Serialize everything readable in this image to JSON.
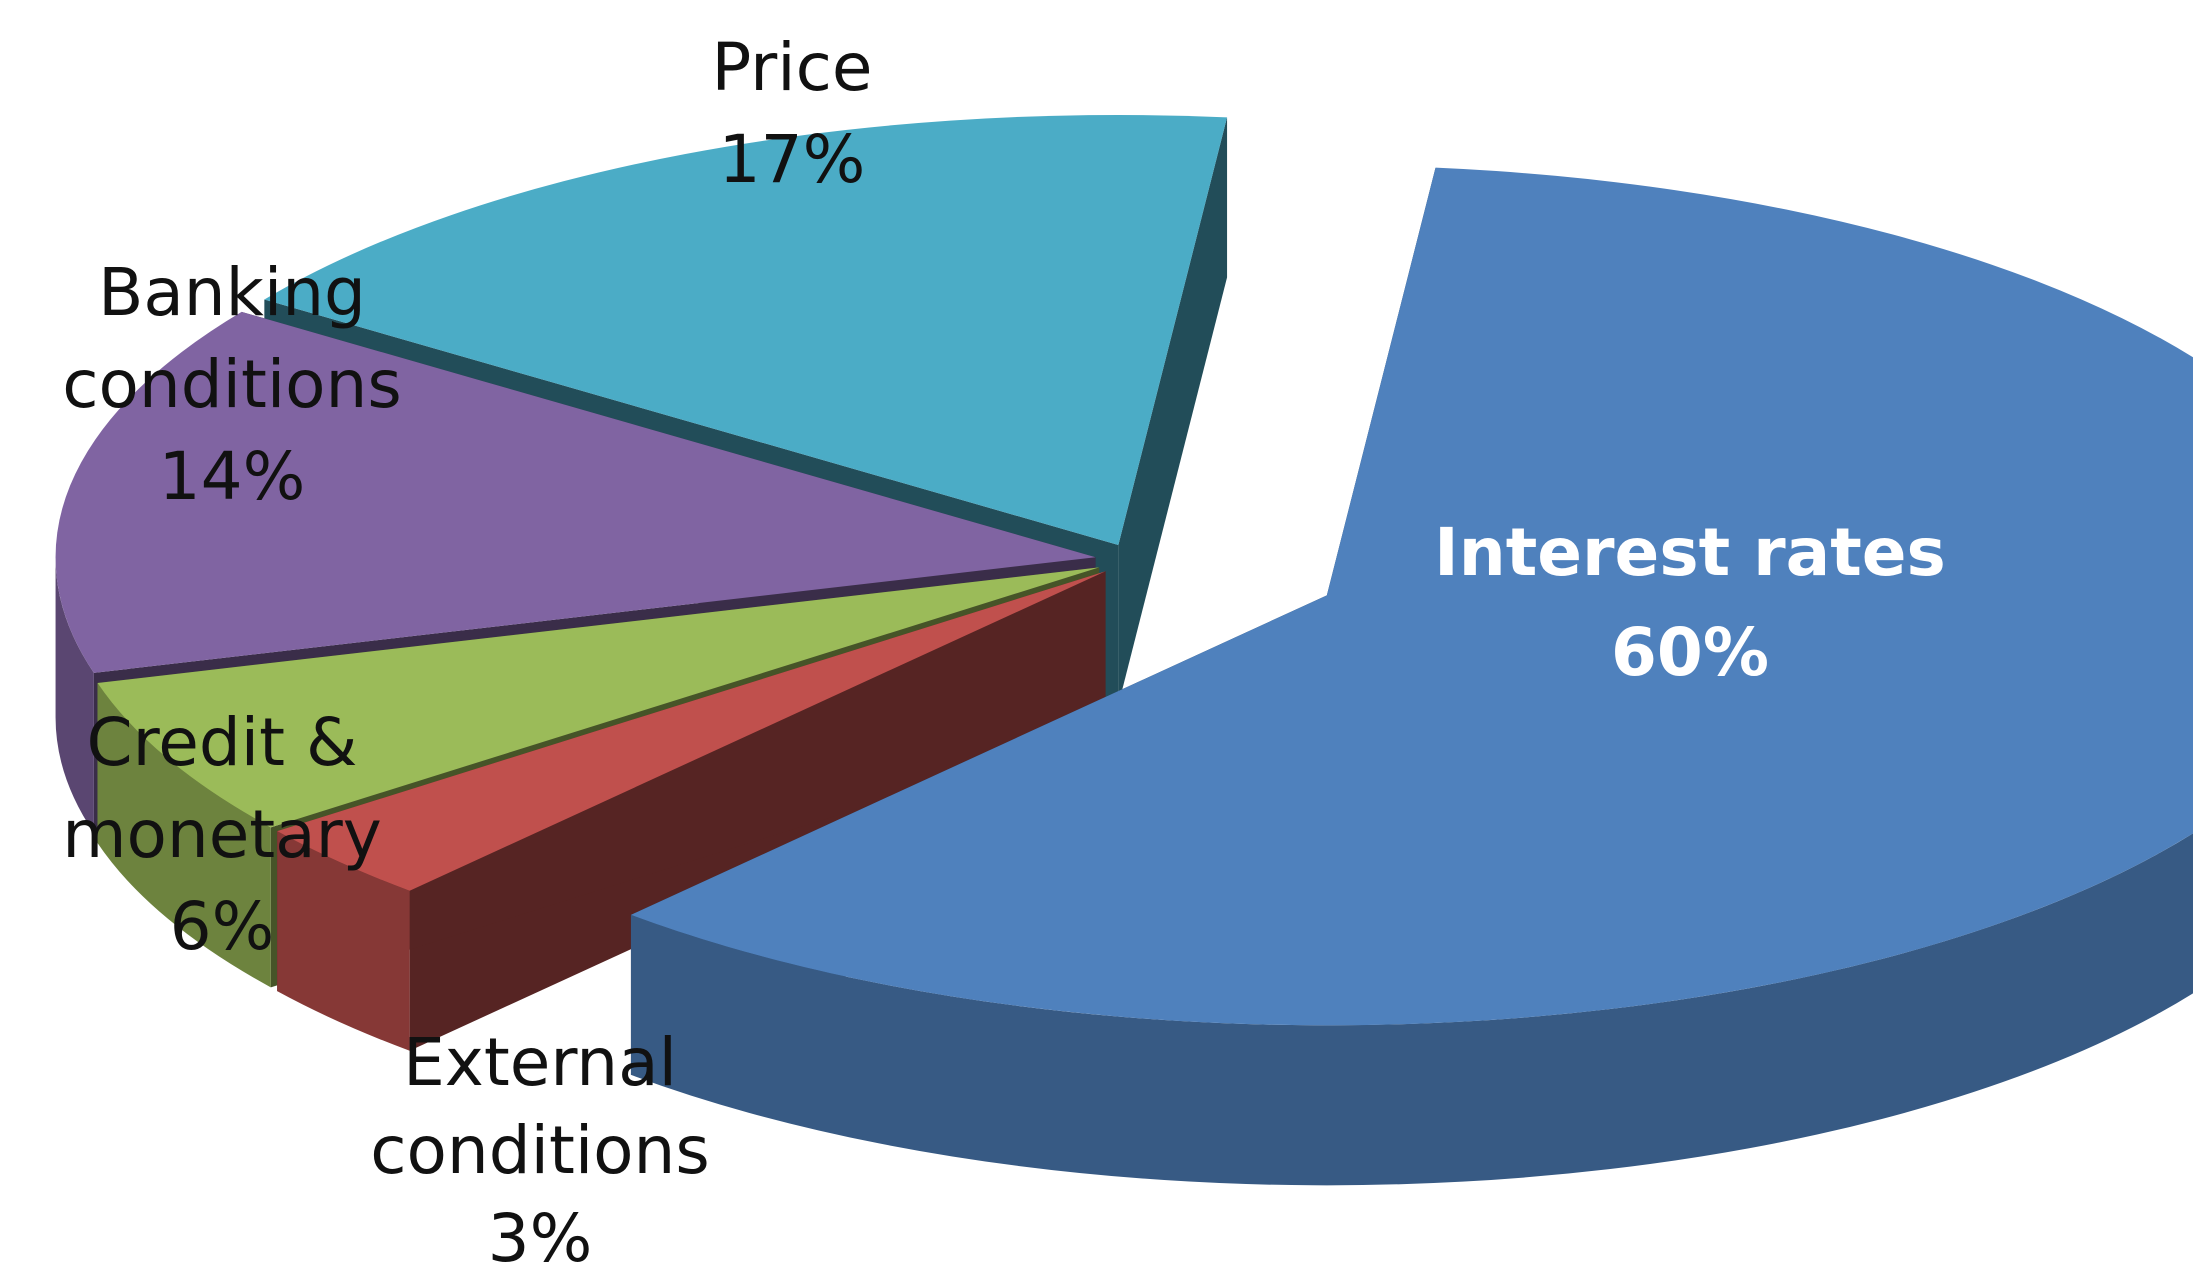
{
  "chart_data": {
    "type": "pie",
    "title": "",
    "exploded": true,
    "slices": [
      {
        "label_lines": [
          "Interest rates"
        ],
        "pct_label": "60%",
        "value": 60,
        "color": "#4f81bd"
      },
      {
        "label_lines": [
          "External",
          "conditions"
        ],
        "pct_label": "3%",
        "value": 3,
        "color": "#c0504d"
      },
      {
        "label_lines": [
          "Credit &",
          "monetary"
        ],
        "pct_label": "6%",
        "value": 6,
        "color": "#9bbb59"
      },
      {
        "label_lines": [
          "Banking",
          "conditions"
        ],
        "pct_label": "14%",
        "value": 14,
        "color": "#8064a2"
      },
      {
        "label_lines": [
          "Price"
        ],
        "pct_label": "17%",
        "value": 17,
        "color": "#4bacc6"
      }
    ]
  }
}
